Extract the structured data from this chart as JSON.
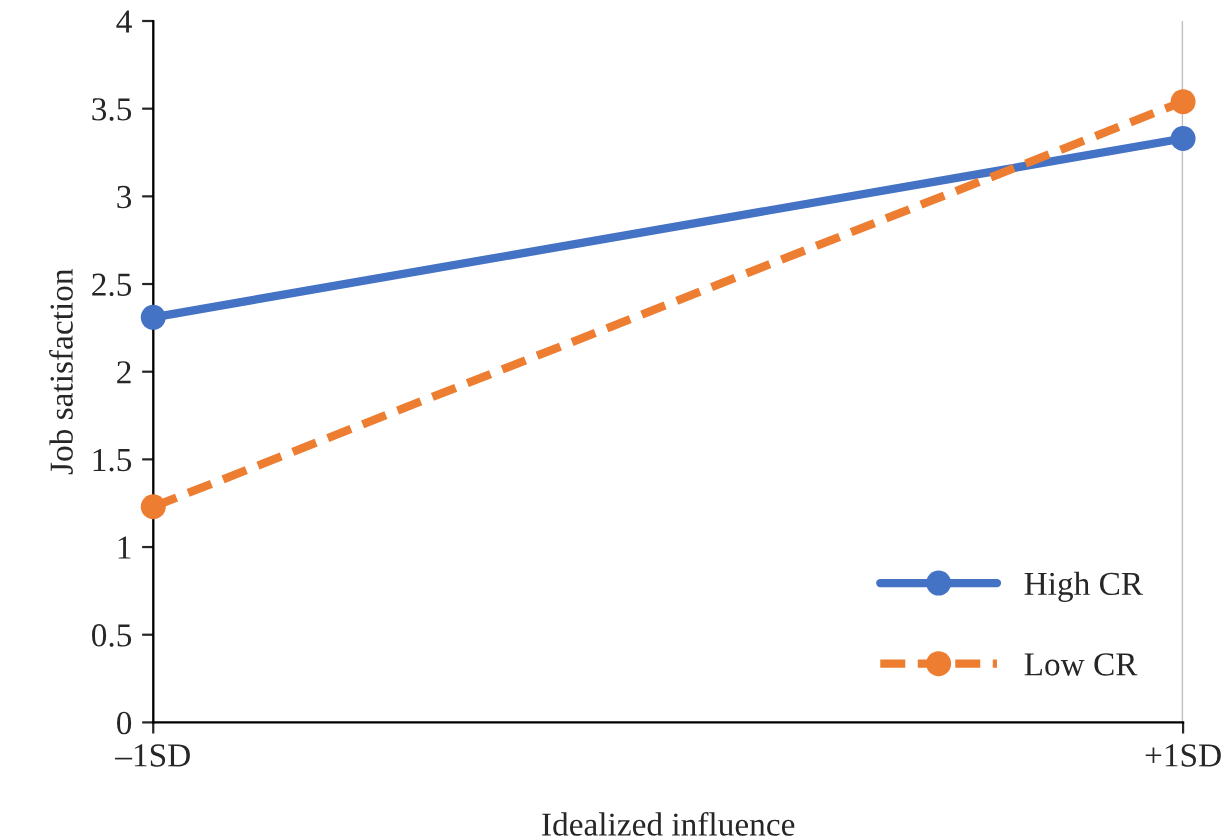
{
  "chart_data": {
    "type": "line",
    "xlabel": "Idealized influence",
    "ylabel": "Job satisfaction",
    "x": [
      -1,
      1
    ],
    "series": [
      {
        "name": "High CR",
        "color": "#4472c4",
        "values": [
          2.31,
          3.33
        ],
        "line_style": "solid"
      },
      {
        "name": "Low CR",
        "color": "#ed7d31",
        "values": [
          1.23,
          3.54
        ],
        "line_style": "dashed"
      }
    ],
    "xlim": [
      -1,
      1
    ],
    "xticks": [
      {
        "value": -1,
        "label": "–1SD"
      },
      {
        "value": 1,
        "label": "+1SD"
      }
    ],
    "ylim": [
      0,
      4
    ],
    "yticks": [
      0,
      0.5,
      1,
      1.5,
      2,
      2.5,
      3,
      3.5,
      4
    ],
    "marker": "circle",
    "legend": "bottom right",
    "grid": "x"
  }
}
